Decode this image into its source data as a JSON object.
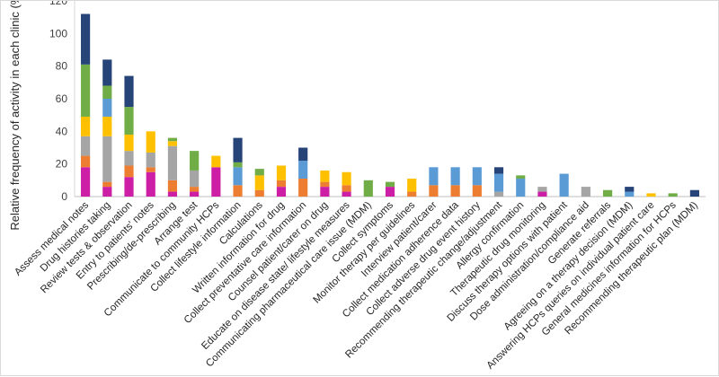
{
  "chart_data": {
    "type": "bar",
    "stacked": true,
    "ylabel": "Relative frequency of activity in each clinic (%)",
    "xlabel": "",
    "ylim": [
      0,
      120
    ],
    "yticks": [
      0,
      20,
      40,
      60,
      80,
      100,
      120
    ],
    "grid": false,
    "legend": "none",
    "categories": [
      "Assess medical notes",
      "Drug histories taking",
      "Review tests & observation",
      "Entry to patients' notes",
      "Prescribing/de-prescribing",
      "Arrange test",
      "Communicate to community HCPs",
      "Collect lifestyle information",
      "Calculations",
      "Written information for drug",
      "Collect preventative care information",
      "Counsel patient/carer on drug",
      "Educate on disease state/ lifestyle measures",
      "Communicating pharmaceutical care issue (MDM)",
      "Collect symptoms",
      "Monitor therapy per guidelines",
      "Interview patient/carer",
      "Collect medication adherence data",
      "Collect adverse drug event history",
      "Recommending therapeutic change/adjustment",
      "Allergy confirmation",
      "Therapeutic drug monitoring",
      "Discuss therapy options with patient",
      "Dose administration/compliance aid",
      "Generate referrals",
      "Agreeing on a therapy decision (MDM)",
      "Answering HCPs queries on individual patient care",
      "General medicines information for HCPs",
      "Recommending therapeutic plan (MDM)"
    ],
    "series": [
      {
        "color": "#cc1fa6",
        "values": [
          18,
          6,
          12,
          15,
          3,
          3,
          18,
          0,
          0,
          6,
          0,
          6,
          3,
          0,
          6,
          0,
          0,
          0,
          0,
          0,
          0,
          3,
          0,
          0,
          0,
          0,
          0,
          0,
          0
        ]
      },
      {
        "color": "#ed7d31",
        "values": [
          7,
          3,
          7,
          3,
          7,
          3,
          0,
          7,
          4,
          4,
          11,
          3,
          4,
          0,
          0,
          3,
          7,
          7,
          7,
          0,
          0,
          0,
          0,
          0,
          0,
          0,
          0,
          0,
          0
        ]
      },
      {
        "color": "#a5a5a5",
        "values": [
          12,
          28,
          9,
          9,
          21,
          10,
          0,
          0,
          0,
          0,
          0,
          0,
          0,
          0,
          0,
          0,
          0,
          0,
          0,
          3,
          0,
          3,
          0,
          6,
          0,
          0,
          0,
          0,
          0
        ]
      },
      {
        "color": "#ffc000",
        "values": [
          12,
          12,
          10,
          13,
          3,
          0,
          7,
          0,
          9,
          9,
          0,
          7,
          8,
          0,
          0,
          8,
          0,
          0,
          0,
          0,
          0,
          0,
          0,
          0,
          0,
          0,
          2,
          0,
          0
        ]
      },
      {
        "color": "#5b9bd5",
        "values": [
          0,
          11,
          0,
          0,
          0,
          0,
          0,
          11,
          0,
          0,
          11,
          0,
          0,
          0,
          0,
          0,
          11,
          11,
          11,
          11,
          11,
          0,
          14,
          0,
          0,
          3,
          0,
          0,
          0
        ]
      },
      {
        "color": "#70ad47",
        "values": [
          32,
          8,
          17,
          0,
          2,
          12,
          0,
          3,
          4,
          0,
          0,
          0,
          0,
          10,
          3,
          0,
          0,
          0,
          0,
          0,
          2,
          0,
          0,
          0,
          4,
          0,
          0,
          2,
          0
        ]
      },
      {
        "color": "#264478",
        "values": [
          31,
          16,
          19,
          0,
          0,
          0,
          0,
          15,
          0,
          0,
          8,
          0,
          0,
          0,
          0,
          0,
          0,
          0,
          0,
          4,
          0,
          0,
          0,
          0,
          0,
          3,
          0,
          0,
          4
        ]
      }
    ]
  }
}
